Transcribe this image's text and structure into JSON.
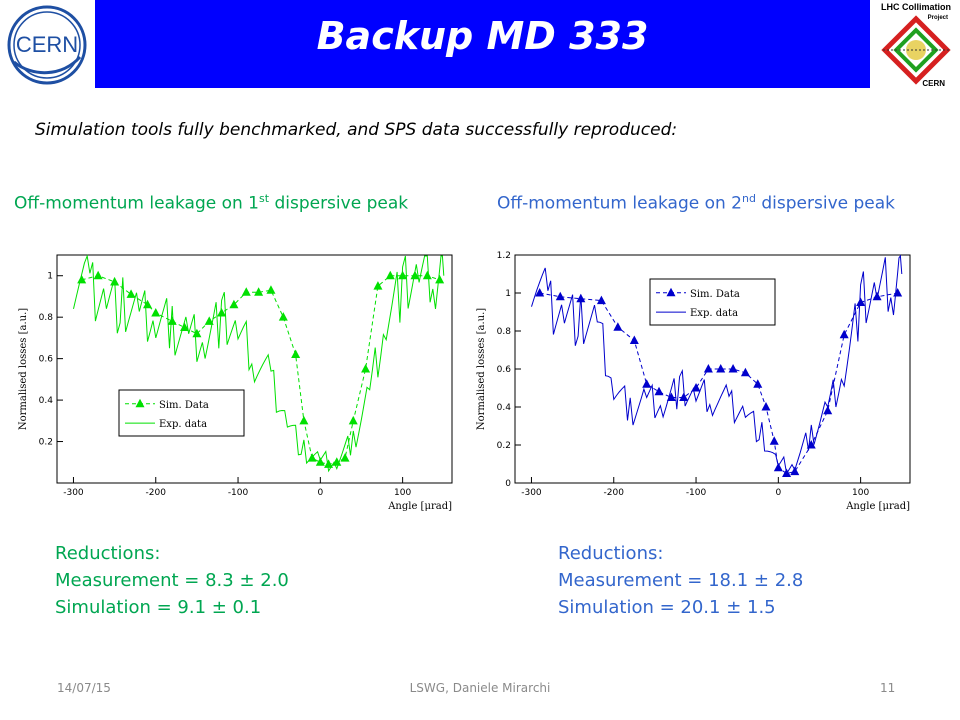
{
  "header": {
    "title": "Backup MD 333"
  },
  "logos": {
    "left": "cern-logo",
    "right": "lhc-collimation-logo",
    "right_text": [
      "LHC Collimation",
      "Project",
      "CERN"
    ]
  },
  "subtitle": "Simulation tools fully benchmarked, and SPS data successfully reproduced:",
  "panels": [
    {
      "heading_pre": "Off-momentum leakage on 1",
      "heading_sup": "st",
      "heading_post": " dispersive peak",
      "reductions": {
        "title": "Reductions:",
        "measurement": "Measurement = 8.3 ± 2.0",
        "simulation": "Simulation = 9.1 ± 0.1"
      }
    },
    {
      "heading_pre": "Off-momentum leakage on 2",
      "heading_sup": "nd",
      "heading_post": " dispersive peak",
      "reductions": {
        "title": "Reductions:",
        "measurement": "Measurement = 18.1 ± 2.8",
        "simulation": "Simulation = 20.1 ± 1.5"
      }
    }
  ],
  "footer": {
    "date": "14/07/15",
    "center": "LSWG, Daniele Mirarchi",
    "page": "11"
  },
  "colors": {
    "title_bar": "#0000ff",
    "green": "#00e000",
    "blue": "#0000cc",
    "green_text": "#00a651",
    "blue_text": "#3366cc"
  },
  "chart_data": [
    {
      "type": "line",
      "color": "#00e000",
      "xlabel": "Angle [μrad]",
      "ylabel": "Normalised losses [a.u.]",
      "xlim": [
        -320,
        160
      ],
      "ylim": [
        0,
        1.1
      ],
      "xticks": [
        -300,
        -200,
        -100,
        0,
        100
      ],
      "yticks": [
        0.2,
        0.4,
        0.6,
        0.8,
        1
      ],
      "legend": {
        "position": "center-left",
        "entries": [
          "Sim. Data",
          "Exp. data"
        ]
      },
      "series": [
        {
          "name": "Sim. Data",
          "style": "dashed-triangles",
          "x": [
            -290,
            -270,
            -250,
            -230,
            -210,
            -200,
            -180,
            -165,
            -150,
            -135,
            -120,
            -105,
            -90,
            -75,
            -60,
            -45,
            -30,
            -20,
            -10,
            0,
            10,
            20,
            30,
            40,
            55,
            70,
            85,
            100,
            115,
            130,
            145
          ],
          "y": [
            0.98,
            1.0,
            0.97,
            0.91,
            0.86,
            0.82,
            0.78,
            0.75,
            0.72,
            0.78,
            0.82,
            0.86,
            0.92,
            0.92,
            0.93,
            0.8,
            0.62,
            0.3,
            0.12,
            0.1,
            0.09,
            0.1,
            0.12,
            0.3,
            0.55,
            0.95,
            1.0,
            1.0,
            1.0,
            1.0,
            0.98
          ]
        },
        {
          "name": "Exp. data",
          "style": "solid",
          "x": [
            -300,
            -280,
            -260,
            -240,
            -220,
            -200,
            -180,
            -160,
            -140,
            -120,
            -100,
            -80,
            -60,
            -40,
            -20,
            0,
            20,
            40,
            60,
            80,
            100,
            120,
            140,
            150
          ],
          "y": [
            1.0,
            0.95,
            0.9,
            0.85,
            0.8,
            0.78,
            0.75,
            0.72,
            0.7,
            0.8,
            0.72,
            0.6,
            0.5,
            0.3,
            0.15,
            0.1,
            0.1,
            0.2,
            0.45,
            0.8,
            0.95,
            1.0,
            1.0,
            1.0
          ]
        }
      ]
    },
    {
      "type": "line",
      "color": "#0000cc",
      "xlabel": "Angle [μrad]",
      "ylabel": "Normalised losses [a.u.]",
      "xlim": [
        -320,
        160
      ],
      "ylim": [
        0,
        1.2
      ],
      "xticks": [
        -300,
        -200,
        -100,
        0,
        100
      ],
      "yticks": [
        0,
        0.2,
        0.4,
        0.6,
        0.8,
        1,
        1.2
      ],
      "legend": {
        "position": "top-center",
        "entries": [
          "Sim. Data",
          "Exp. data"
        ]
      },
      "series": [
        {
          "name": "Sim. Data",
          "style": "dashed-triangles",
          "x": [
            -290,
            -265,
            -240,
            -215,
            -195,
            -175,
            -160,
            -145,
            -130,
            -115,
            -100,
            -85,
            -70,
            -55,
            -40,
            -25,
            -15,
            -5,
            0,
            10,
            20,
            40,
            60,
            80,
            100,
            120,
            145
          ],
          "y": [
            1.0,
            0.98,
            0.97,
            0.96,
            0.82,
            0.75,
            0.52,
            0.48,
            0.45,
            0.45,
            0.5,
            0.6,
            0.6,
            0.6,
            0.58,
            0.52,
            0.4,
            0.22,
            0.08,
            0.05,
            0.06,
            0.2,
            0.38,
            0.78,
            0.95,
            0.98,
            1.0
          ]
        },
        {
          "name": "Exp. data",
          "style": "solid",
          "x": [
            -300,
            -280,
            -260,
            -240,
            -220,
            -200,
            -180,
            -160,
            -140,
            -120,
            -100,
            -80,
            -60,
            -40,
            -20,
            0,
            20,
            40,
            60,
            80,
            100,
            120,
            140,
            150
          ],
          "y": [
            1.1,
            0.95,
            0.9,
            0.85,
            0.82,
            0.5,
            0.38,
            0.45,
            0.42,
            0.5,
            0.45,
            0.45,
            0.42,
            0.38,
            0.25,
            0.08,
            0.1,
            0.25,
            0.4,
            0.6,
            0.95,
            1.0,
            1.05,
            1.1
          ]
        }
      ]
    }
  ]
}
